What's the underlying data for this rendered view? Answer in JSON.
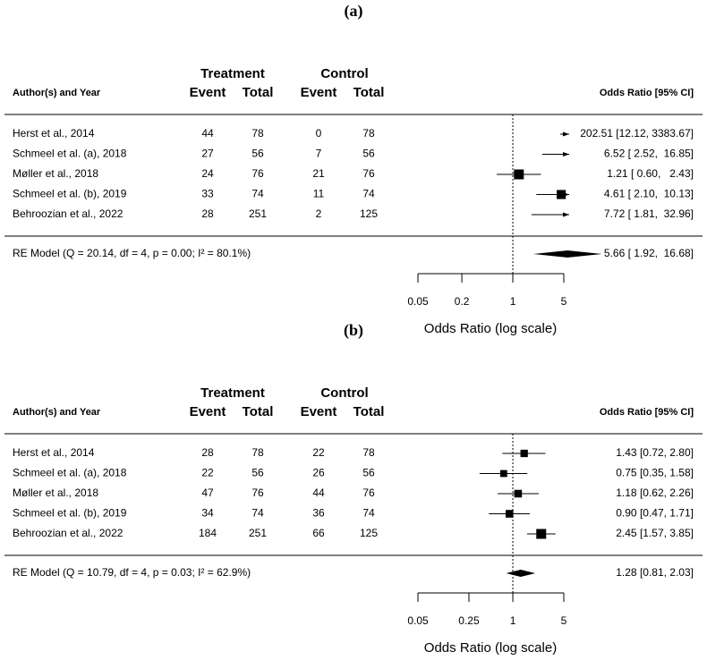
{
  "chart_data": [
    {
      "type": "forest",
      "label": "(a)",
      "headers": {
        "study": "Author(s) and Year",
        "treatment": "Treatment",
        "control": "Control",
        "columns": [
          "Event",
          "Total",
          "Event",
          "Total"
        ],
        "effect": "Odds Ratio [95% CI]"
      },
      "categories": [
        "Herst et al., 2014",
        "Schmeel et al. (a), 2018",
        "Møller et al., 2018",
        "Schmeel et al. (b), 2019",
        "Behroozian et al., 2022"
      ],
      "treatment_event": [
        44,
        27,
        24,
        33,
        28
      ],
      "treatment_total": [
        78,
        56,
        76,
        74,
        251
      ],
      "control_event": [
        0,
        7,
        21,
        11,
        2
      ],
      "control_total": [
        78,
        56,
        76,
        74,
        125
      ],
      "values": [
        202.51,
        6.52,
        1.21,
        4.61,
        7.72
      ],
      "ci_lower": [
        12.12,
        2.52,
        0.6,
        2.1,
        1.81
      ],
      "ci_upper": [
        3383.67,
        16.85,
        2.43,
        10.13,
        32.96
      ],
      "value_labels": [
        "202.51 [12.12, 3383.67]",
        "6.52 [ 2.52,  16.85]",
        "1.21 [ 0.60,   2.43]",
        "4.61 [ 2.10,  10.13]",
        "7.72 [ 1.81,  32.96]"
      ],
      "summary": {
        "label": "RE Model (Q = 20.14, df = 4, p = 0.00; I² = 80.1%)",
        "value": 5.66,
        "ci_lower": 1.92,
        "ci_upper": 16.68,
        "value_label": "5.66 [ 1.92,  16.68]"
      },
      "xlim": [
        0.05,
        5
      ],
      "xticks": [
        0.05,
        0.2,
        1,
        5
      ],
      "log_x": true,
      "reference_line": 1,
      "xlabel": "Odds Ratio (log scale)",
      "color": "#000000"
    },
    {
      "type": "forest",
      "label": "(b)",
      "headers": {
        "study": "Author(s) and Year",
        "treatment": "Treatment",
        "control": "Control",
        "columns": [
          "Event",
          "Total",
          "Event",
          "Total"
        ],
        "effect": "Odds Ratio [95% CI]"
      },
      "categories": [
        "Herst et al., 2014",
        "Schmeel et al. (a), 2018",
        "Møller et al., 2018",
        "Schmeel et al. (b), 2019",
        "Behroozian et al., 2022"
      ],
      "treatment_event": [
        28,
        22,
        47,
        34,
        184
      ],
      "treatment_total": [
        78,
        56,
        76,
        74,
        251
      ],
      "control_event": [
        22,
        26,
        44,
        36,
        66
      ],
      "control_total": [
        78,
        56,
        76,
        74,
        125
      ],
      "values": [
        1.43,
        0.75,
        1.18,
        0.9,
        2.45
      ],
      "ci_lower": [
        0.72,
        0.35,
        0.62,
        0.47,
        1.57
      ],
      "ci_upper": [
        2.8,
        1.58,
        2.26,
        1.71,
        3.85
      ],
      "value_labels": [
        "1.43 [0.72, 2.80]",
        "0.75 [0.35, 1.58]",
        "1.18 [0.62, 2.26]",
        "0.90 [0.47, 1.71]",
        "2.45 [1.57, 3.85]"
      ],
      "summary": {
        "label": "RE Model (Q = 10.79, df = 4, p = 0.03; I² = 62.9%)",
        "value": 1.28,
        "ci_lower": 0.81,
        "ci_upper": 2.03,
        "value_label": "1.28 [0.81, 2.03]"
      },
      "xlim": [
        0.05,
        5
      ],
      "xticks": [
        0.05,
        0.25,
        1,
        5
      ],
      "log_x": true,
      "reference_line": 1,
      "xlabel": "Odds Ratio (log scale)",
      "color": "#000000"
    }
  ]
}
